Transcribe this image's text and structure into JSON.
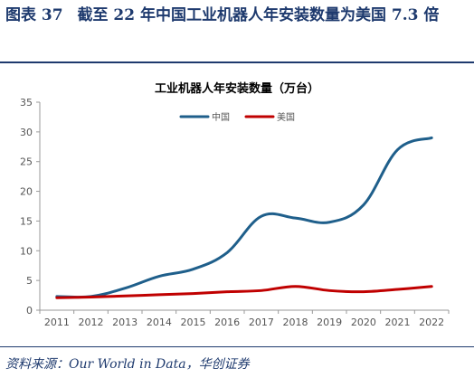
{
  "figure": {
    "label": "图表",
    "number": "37",
    "title": "截至 22 年中国工业机器人年安装数量为美国 7.3 倍"
  },
  "source": "资料来源：Our World in Data，华创证券",
  "colors": {
    "china": "#1f5f8b",
    "usa": "#c00000",
    "frame": "#1e3a6e"
  },
  "chart_data": {
    "type": "line",
    "title": "工业机器人年安装数量（万台）",
    "x": [
      "2011",
      "2012",
      "2013",
      "2014",
      "2015",
      "2016",
      "2017",
      "2018",
      "2019",
      "2020",
      "2021",
      "2022"
    ],
    "series": [
      {
        "name": "中国",
        "values": [
          2.3,
          2.3,
          3.7,
          5.7,
          6.9,
          9.7,
          15.8,
          15.5,
          14.8,
          17.7,
          27.0,
          29.0
        ]
      },
      {
        "name": "美国",
        "values": [
          2.1,
          2.2,
          2.4,
          2.6,
          2.8,
          3.1,
          3.3,
          4.0,
          3.3,
          3.1,
          3.5,
          4.0
        ]
      }
    ],
    "ylim": [
      0,
      35
    ],
    "yticks": [
      0,
      5,
      10,
      15,
      20,
      25,
      30,
      35
    ],
    "legend": "top-center"
  }
}
